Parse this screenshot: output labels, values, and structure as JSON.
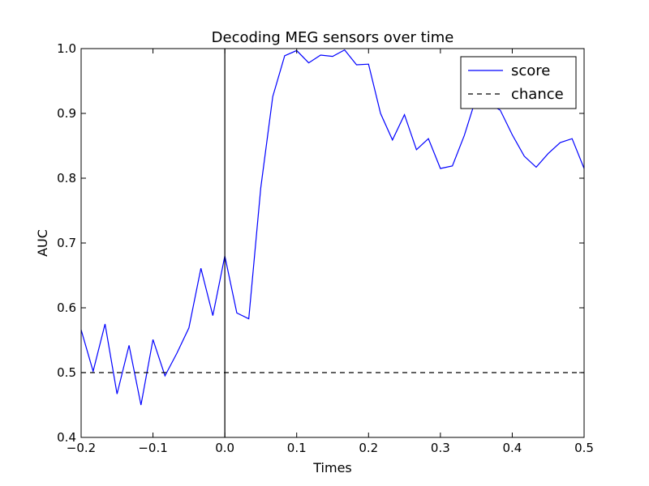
{
  "chart_data": {
    "type": "line",
    "title": "Decoding MEG sensors over time",
    "xlabel": "Times",
    "ylabel": "AUC",
    "xlim": [
      -0.2,
      0.5
    ],
    "ylim": [
      0.4,
      1.0
    ],
    "xticks": [
      -0.2,
      -0.1,
      0.0,
      0.1,
      0.2,
      0.3,
      0.4,
      0.5
    ],
    "xtick_labels": [
      "−0.2",
      "−0.1",
      "0.0",
      "0.1",
      "0.2",
      "0.3",
      "0.4",
      "0.5"
    ],
    "yticks": [
      0.4,
      0.5,
      0.6,
      0.7,
      0.8,
      0.9,
      1.0
    ],
    "ytick_labels": [
      "0.4",
      "0.5",
      "0.6",
      "0.7",
      "0.8",
      "0.9",
      "1.0"
    ],
    "grid": false,
    "legend_position": "top-right",
    "vline_x": 0.0,
    "series": [
      {
        "name": "score",
        "color": "#0000ff",
        "style": "solid",
        "x": [
          -0.2,
          -0.1833,
          -0.1667,
          -0.15,
          -0.1333,
          -0.1167,
          -0.1,
          -0.0833,
          -0.0667,
          -0.05,
          -0.0333,
          -0.0167,
          0.0,
          0.0167,
          0.0333,
          0.05,
          0.0667,
          0.0833,
          0.1,
          0.1167,
          0.1333,
          0.15,
          0.1667,
          0.1833,
          0.2,
          0.2167,
          0.2333,
          0.25,
          0.2667,
          0.2833,
          0.3,
          0.3167,
          0.3333,
          0.35,
          0.3667,
          0.3833,
          0.4,
          0.4167,
          0.4333,
          0.45,
          0.4667,
          0.4833,
          0.5
        ],
        "y": [
          0.566,
          0.502,
          0.575,
          0.467,
          0.542,
          0.45,
          0.551,
          0.495,
          0.53,
          0.569,
          0.661,
          0.588,
          0.68,
          0.592,
          0.583,
          0.785,
          0.926,
          0.989,
          0.997,
          0.978,
          0.99,
          0.988,
          0.998,
          0.975,
          0.976,
          0.9,
          0.859,
          0.898,
          0.844,
          0.861,
          0.815,
          0.819,
          0.866,
          0.925,
          0.915,
          0.905,
          0.867,
          0.834,
          0.817,
          0.838,
          0.855,
          0.861,
          0.815
        ]
      },
      {
        "name": "chance",
        "color": "#000000",
        "style": "dashed",
        "x": [
          -0.2,
          0.5
        ],
        "y": [
          0.5,
          0.5
        ]
      }
    ]
  }
}
